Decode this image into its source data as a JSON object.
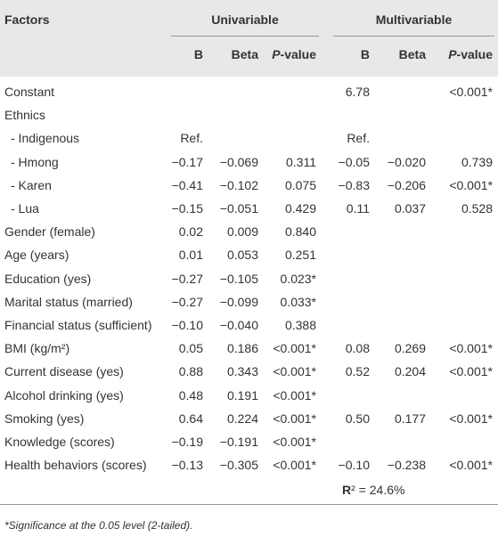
{
  "header": {
    "factors": "Factors",
    "univariable": "Univariable",
    "multivariable": "Multivariable",
    "subheaders": [
      "B",
      "Beta",
      "P-value",
      "B",
      "Beta",
      "P-value"
    ]
  },
  "rows": [
    [
      "Constant",
      null,
      null,
      null,
      "6.78",
      null,
      "<0.001*"
    ],
    [
      "Ethnics",
      null,
      null,
      null,
      null,
      null,
      null
    ],
    [
      "- Indigenous",
      "Ref.",
      null,
      null,
      "Ref.",
      null,
      null
    ],
    [
      "- Hmong",
      "−0.17",
      "−0.069",
      "0.311",
      "−0.05",
      "−0.020",
      "0.739"
    ],
    [
      "- Karen",
      "−0.41",
      "−0.102",
      "0.075",
      "−0.83",
      "−0.206",
      "<0.001*"
    ],
    [
      "- Lua",
      "−0.15",
      "−0.051",
      "0.429",
      "0.11",
      "0.037",
      "0.528"
    ],
    [
      "Gender (female)",
      "0.02",
      "0.009",
      "0.840",
      null,
      null,
      null
    ],
    [
      "Age (years)",
      "0.01",
      "0.053",
      "0.251",
      null,
      null,
      null
    ],
    [
      "Education (yes)",
      "−0.27",
      "−0.105",
      "0.023*",
      null,
      null,
      null
    ],
    [
      "Marital status (married)",
      "−0.27",
      "−0.099",
      "0.033*",
      null,
      null,
      null
    ],
    [
      "Financial status (sufficient)",
      "−0.10",
      "−0.040",
      "0.388",
      null,
      null,
      null
    ],
    [
      "BMI (kg/m²)",
      "0.05",
      "0.186",
      "<0.001*",
      "0.08",
      "0.269",
      "<0.001*"
    ],
    [
      "Current disease (yes)",
      "0.88",
      "0.343",
      "<0.001*",
      "0.52",
      "0.204",
      "<0.001*"
    ],
    [
      "Alcohol drinking (yes)",
      "0.48",
      "0.191",
      "<0.001*",
      null,
      null,
      null
    ],
    [
      "Smoking (yes)",
      "0.64",
      "0.224",
      "<0.001*",
      "0.50",
      "0.177",
      "<0.001*"
    ],
    [
      "Knowledge (scores)",
      "−0.19",
      "−0.191",
      "<0.001*",
      null,
      null,
      null
    ],
    [
      "Health behaviors (scores)",
      "−0.13",
      "−0.305",
      "<0.001*",
      "−0.10",
      "−0.238",
      "<0.001*"
    ]
  ],
  "r_squared": "R² = 24.6%",
  "footnote": "*Significance at the 0.05 level (2-tailed)."
}
